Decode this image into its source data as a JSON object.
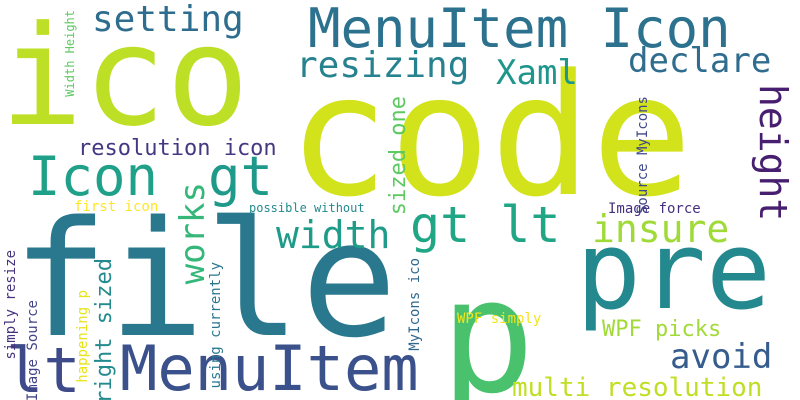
{
  "words": {
    "code": "code",
    "file": "file",
    "ico": "ico",
    "p": "p",
    "pre": "pre",
    "menuitem_icon": "MenuItem Icon",
    "menuitem": "MenuItem",
    "lt": "lt",
    "gt_lt": "gt lt",
    "icon": "Icon",
    "gt": "gt",
    "setting": "setting",
    "resizing": "resizing",
    "xaml": "Xaml",
    "declare": "declare",
    "width": "width",
    "insure": "insure",
    "avoid": "avoid",
    "multi_resolution": "multi resolution",
    "wpf_picks": "WPF picks",
    "resolution_icon": "resolution icon",
    "height": "height",
    "works": "works",
    "right_sized": "right sized",
    "sized_one": "sized one",
    "first_icon": "first icon",
    "possible_without": "possible without",
    "image_force": "Image force",
    "wpf_simply": "WPF simply",
    "source_myicons": "Source MyIcons",
    "width_height": "Width Height",
    "simply_resize": "simply resize",
    "image_source": "Image Source",
    "happening_p": "happening p",
    "using_currently": "using currently",
    "myicons_ico": "MyIcons ico"
  }
}
